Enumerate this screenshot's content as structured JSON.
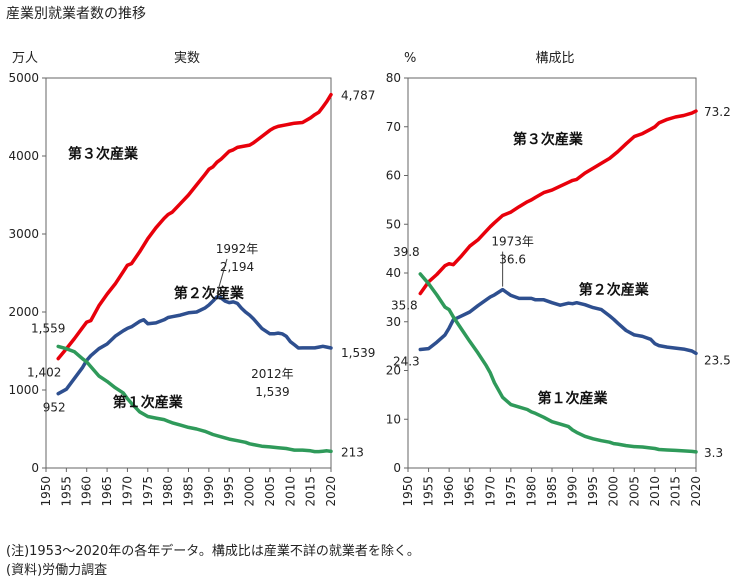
{
  "title": "産業別就業者数の推移",
  "notes": {
    "line1": "(注)1953〜2020年の各年データ。構成比は産業不詳の就業者を除く。",
    "line2": "(資料)労働力調査"
  },
  "colors": {
    "tertiary": "#e8000b",
    "secondary": "#2e4f8f",
    "primary": "#2f9a5a"
  },
  "chart_data": [
    {
      "type": "line",
      "subtitle": "実数",
      "unit": "万人",
      "ylim": [
        0,
        5000
      ],
      "yticks": [
        0,
        1000,
        2000,
        3000,
        4000,
        5000
      ],
      "xlim": [
        1950,
        2020
      ],
      "xticks": [
        1950,
        1955,
        1960,
        1965,
        1970,
        1975,
        1980,
        1985,
        1990,
        1995,
        2000,
        2005,
        2010,
        2015,
        2020
      ],
      "series": [
        {
          "name": "第３次産業",
          "key": "tertiary",
          "x": [
            1953,
            1955,
            1957,
            1959,
            1960,
            1961,
            1963,
            1965,
            1967,
            1969,
            1970,
            1971,
            1973,
            1975,
            1977,
            1979,
            1980,
            1981,
            1983,
            1985,
            1987,
            1989,
            1990,
            1991,
            1992,
            1993,
            1995,
            1996,
            1997,
            1999,
            2000,
            2001,
            2003,
            2005,
            2006,
            2007,
            2009,
            2010,
            2011,
            2013,
            2015,
            2016,
            2017,
            2018,
            2019,
            2020
          ],
          "y": [
            1402,
            1530,
            1660,
            1800,
            1870,
            1890,
            2080,
            2230,
            2360,
            2520,
            2600,
            2620,
            2770,
            2940,
            3080,
            3200,
            3250,
            3280,
            3390,
            3500,
            3630,
            3760,
            3830,
            3860,
            3920,
            3960,
            4060,
            4080,
            4110,
            4130,
            4140,
            4170,
            4250,
            4330,
            4360,
            4380,
            4400,
            4410,
            4420,
            4430,
            4490,
            4530,
            4560,
            4630,
            4700,
            4787
          ],
          "label": {
            "x": 1964,
            "y": 3970
          },
          "end_label": "4,787",
          "start_label": "1,402"
        },
        {
          "name": "第２次産業",
          "key": "secondary",
          "x": [
            1953,
            1955,
            1957,
            1959,
            1960,
            1961,
            1963,
            1965,
            1967,
            1969,
            1970,
            1971,
            1973,
            1974,
            1975,
            1977,
            1979,
            1980,
            1981,
            1983,
            1985,
            1987,
            1989,
            1990,
            1991,
            1992,
            1993,
            1994,
            1995,
            1996,
            1997,
            1998,
            1999,
            2000,
            2001,
            2003,
            2005,
            2006,
            2007,
            2008,
            2009,
            2010,
            2011,
            2012,
            2013,
            2014,
            2015,
            2016,
            2017,
            2018,
            2019,
            2020
          ],
          "y": [
            952,
            1010,
            1150,
            1290,
            1380,
            1440,
            1530,
            1590,
            1690,
            1760,
            1790,
            1810,
            1880,
            1900,
            1850,
            1860,
            1900,
            1930,
            1940,
            1960,
            1990,
            2000,
            2050,
            2090,
            2140,
            2194,
            2180,
            2140,
            2120,
            2130,
            2110,
            2050,
            2000,
            1960,
            1910,
            1790,
            1720,
            1720,
            1730,
            1720,
            1690,
            1620,
            1580,
            1539,
            1540,
            1540,
            1540,
            1540,
            1550,
            1560,
            1550,
            1539
          ],
          "label": {
            "x": 1990,
            "y": 2180
          },
          "peak_label": [
            "1992年",
            "2,194"
          ],
          "low_label": [
            "2012年",
            "1,539"
          ],
          "end_label": "1,539",
          "start_label": "952"
        },
        {
          "name": "第１次産業",
          "key": "primary",
          "x": [
            1953,
            1955,
            1957,
            1959,
            1960,
            1961,
            1963,
            1965,
            1967,
            1969,
            1970,
            1971,
            1973,
            1975,
            1977,
            1979,
            1980,
            1981,
            1983,
            1985,
            1987,
            1989,
            1990,
            1991,
            1993,
            1995,
            1997,
            1999,
            2000,
            2001,
            2003,
            2005,
            2007,
            2009,
            2010,
            2011,
            2013,
            2015,
            2016,
            2017,
            2018,
            2019,
            2020
          ],
          "y": [
            1559,
            1530,
            1490,
            1400,
            1360,
            1300,
            1180,
            1110,
            1030,
            960,
            890,
            830,
            720,
            660,
            640,
            620,
            600,
            580,
            550,
            520,
            500,
            470,
            450,
            430,
            400,
            370,
            350,
            330,
            310,
            300,
            280,
            270,
            260,
            250,
            240,
            230,
            230,
            220,
            210,
            210,
            215,
            220,
            213
          ],
          "label": {
            "x": 1975,
            "y": 780
          },
          "end_label": "213",
          "start_label": "1,559"
        }
      ]
    },
    {
      "type": "line",
      "subtitle": "構成比",
      "unit": "%",
      "ylim": [
        0,
        80
      ],
      "yticks": [
        0,
        10,
        20,
        30,
        40,
        50,
        60,
        70,
        80
      ],
      "xlim": [
        1950,
        2020
      ],
      "xticks": [
        1950,
        1955,
        1960,
        1965,
        1970,
        1975,
        1980,
        1985,
        1990,
        1995,
        2000,
        2005,
        2010,
        2015,
        2020
      ],
      "series": [
        {
          "name": "第３次産業",
          "key": "tertiary",
          "x": [
            1953,
            1955,
            1957,
            1959,
            1960,
            1961,
            1963,
            1965,
            1967,
            1969,
            1970,
            1971,
            1973,
            1975,
            1977,
            1979,
            1980,
            1981,
            1983,
            1985,
            1987,
            1989,
            1990,
            1991,
            1993,
            1995,
            1997,
            1999,
            2000,
            2001,
            2003,
            2005,
            2007,
            2009,
            2010,
            2011,
            2013,
            2015,
            2017,
            2019,
            2020
          ],
          "y": [
            35.8,
            38.2,
            39.7,
            41.5,
            41.9,
            41.7,
            43.5,
            45.5,
            46.8,
            48.6,
            49.5,
            50.3,
            51.8,
            52.5,
            53.6,
            54.6,
            55.0,
            55.5,
            56.5,
            57.0,
            57.8,
            58.6,
            59.0,
            59.2,
            60.5,
            61.5,
            62.5,
            63.5,
            64.2,
            64.9,
            66.5,
            68.0,
            68.6,
            69.5,
            70.0,
            70.8,
            71.5,
            72.0,
            72.3,
            72.8,
            73.2
          ],
          "label": {
            "x": 1984,
            "y": 66.5
          },
          "end_label": "73.2",
          "start_label": "35.8"
        },
        {
          "name": "第２次産業",
          "key": "secondary",
          "x": [
            1953,
            1955,
            1957,
            1959,
            1960,
            1961,
            1963,
            1965,
            1967,
            1969,
            1970,
            1971,
            1973,
            1974,
            1975,
            1977,
            1979,
            1980,
            1981,
            1983,
            1985,
            1987,
            1989,
            1990,
            1991,
            1993,
            1995,
            1997,
            1999,
            2000,
            2001,
            2003,
            2005,
            2007,
            2009,
            2010,
            2011,
            2013,
            2015,
            2017,
            2019,
            2020
          ],
          "y": [
            24.3,
            24.5,
            25.8,
            27.3,
            28.7,
            30.4,
            31.2,
            32.0,
            33.3,
            34.5,
            35.1,
            35.5,
            36.6,
            36.0,
            35.4,
            34.8,
            34.8,
            34.8,
            34.5,
            34.5,
            33.9,
            33.4,
            33.8,
            33.7,
            33.9,
            33.5,
            32.9,
            32.5,
            31.2,
            30.5,
            29.7,
            28.2,
            27.3,
            27.0,
            26.4,
            25.5,
            25.1,
            24.8,
            24.6,
            24.4,
            24.0,
            23.5
          ],
          "label": {
            "x": 2000,
            "y": 35.6
          },
          "peak_label": [
            "1973年",
            "36.6"
          ],
          "end_label": "23.5",
          "start_label": "24.3"
        },
        {
          "name": "第１次産業",
          "key": "primary",
          "x": [
            1953,
            1955,
            1957,
            1959,
            1960,
            1961,
            1963,
            1965,
            1967,
            1969,
            1970,
            1971,
            1973,
            1975,
            1977,
            1979,
            1980,
            1981,
            1983,
            1985,
            1987,
            1989,
            1990,
            1991,
            1993,
            1995,
            1997,
            1999,
            2000,
            2001,
            2003,
            2005,
            2007,
            2009,
            2010,
            2011,
            2013,
            2015,
            2017,
            2019,
            2020
          ],
          "y": [
            39.8,
            37.8,
            35.5,
            33.0,
            32.5,
            31.0,
            28.5,
            26.0,
            23.6,
            21.0,
            19.5,
            17.5,
            14.5,
            13.0,
            12.5,
            12.0,
            11.5,
            11.2,
            10.4,
            9.5,
            9.0,
            8.5,
            7.8,
            7.3,
            6.5,
            6.0,
            5.6,
            5.3,
            5.0,
            4.9,
            4.6,
            4.4,
            4.3,
            4.1,
            4.0,
            3.8,
            3.7,
            3.6,
            3.5,
            3.4,
            3.3
          ],
          "label": {
            "x": 1990,
            "y": 13.3
          },
          "end_label": "3.3",
          "start_label": "39.8"
        }
      ]
    }
  ]
}
